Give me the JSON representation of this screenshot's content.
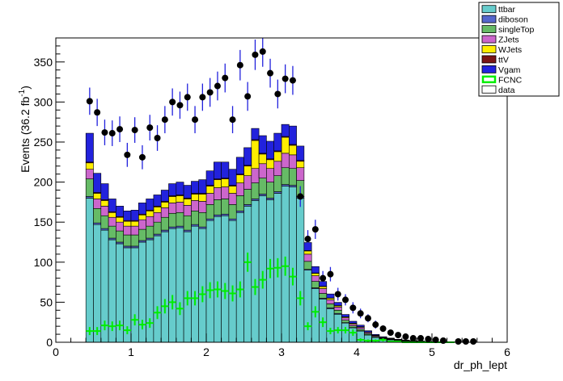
{
  "chart_data": {
    "type": "bar",
    "subtype": "stacked-histogram-with-data-points",
    "xlabel": "dr_ph_lept",
    "ylabel_prefix": "Events (36.2 fb",
    "ylabel_exp": "-1",
    "ylabel_suffix": ")",
    "xlim": [
      0,
      6
    ],
    "ylim": [
      0,
      380
    ],
    "x_ticks": [
      0,
      1,
      2,
      3,
      4,
      5,
      6
    ],
    "y_ticks": [
      0,
      50,
      100,
      150,
      200,
      250,
      300,
      350
    ],
    "grid": false,
    "legend_position": "top-right",
    "bin_width": 0.1,
    "bin_edges_start": 0.4,
    "x": [
      0.45,
      0.55,
      0.65,
      0.75,
      0.85,
      0.95,
      1.05,
      1.15,
      1.25,
      1.35,
      1.45,
      1.55,
      1.65,
      1.75,
      1.85,
      1.95,
      2.05,
      2.15,
      2.25,
      2.35,
      2.45,
      2.55,
      2.65,
      2.75,
      2.85,
      2.95,
      3.05,
      3.15,
      3.25,
      3.35,
      3.45,
      3.55,
      3.65,
      3.75,
      3.85,
      3.95,
      4.05,
      4.15,
      4.25,
      4.35,
      4.45,
      4.55,
      4.65,
      4.75,
      4.85,
      4.95,
      5.05,
      5.15,
      5.25,
      5.35,
      5.45,
      5.55,
      5.65,
      5.75
    ],
    "stack_order": [
      "ttbar",
      "diboson",
      "singleTop",
      "ZJets",
      "WJets",
      "ttV",
      "Vgam"
    ],
    "series": [
      {
        "name": "ttbar",
        "color": "#66cccc",
        "values": [
          180,
          147,
          140,
          128,
          123,
          118,
          118,
          125,
          128,
          133,
          138,
          142,
          143,
          138,
          145,
          142,
          152,
          157,
          158,
          152,
          162,
          170,
          177,
          183,
          178,
          186,
          195,
          194,
          180,
          90,
          67,
          54,
          42,
          35,
          24,
          18,
          14,
          9,
          6,
          4,
          3,
          2,
          1.5,
          1,
          0.8,
          0.6,
          0.4,
          0.3,
          0.2,
          0.2,
          0.1,
          0.1,
          0.1,
          0.1
        ]
      },
      {
        "name": "diboson",
        "color": "#5566cc",
        "values": [
          2,
          2,
          2,
          2,
          2,
          2,
          2,
          2,
          2,
          2,
          2,
          2,
          2,
          2,
          2,
          2,
          2,
          2,
          2,
          2,
          2,
          2,
          2,
          2,
          2,
          2,
          2,
          2,
          2,
          1,
          1,
          1,
          1,
          1,
          0.5,
          0.5,
          0.5,
          0.3,
          0.3,
          0.2,
          0.2,
          0.1,
          0.1,
          0.1,
          0.1,
          0,
          0,
          0,
          0,
          0,
          0,
          0,
          0,
          0
        ]
      },
      {
        "name": "singleTop",
        "color": "#66bb66",
        "values": [
          22,
          18,
          16,
          15,
          14,
          14,
          14,
          14,
          15,
          15,
          16,
          17,
          17,
          18,
          17,
          18,
          18,
          19,
          19,
          18,
          19,
          19,
          20,
          20,
          20,
          20,
          21,
          21,
          20,
          10,
          8,
          6,
          5,
          4,
          3,
          2,
          2,
          1.5,
          1,
          0.8,
          0.6,
          0.5,
          0.4,
          0.3,
          0.2,
          0.2,
          0.1,
          0.1,
          0.1,
          0,
          0,
          0,
          0,
          0
        ]
      },
      {
        "name": "ZJets",
        "color": "#cc66cc",
        "values": [
          12,
          12,
          12,
          11,
          11,
          11,
          11,
          12,
          12,
          12,
          12,
          13,
          13,
          13,
          13,
          14,
          14,
          15,
          15,
          14,
          16,
          17,
          18,
          18,
          17,
          18,
          18,
          17,
          16,
          9,
          7,
          6,
          5,
          4,
          3,
          2,
          2,
          1.5,
          1,
          0.8,
          0.6,
          0.4,
          0.3,
          0.2,
          0.2,
          0.1,
          0.1,
          0.1,
          0,
          0,
          0,
          0,
          0,
          0
        ]
      },
      {
        "name": "WJets",
        "color": "#ffee00",
        "values": [
          8,
          7,
          7,
          6,
          6,
          6,
          6,
          6,
          7,
          7,
          7,
          8,
          8,
          8,
          8,
          9,
          9,
          10,
          10,
          9,
          10,
          12,
          35,
          12,
          11,
          12,
          20,
          12,
          8,
          4,
          3,
          2.5,
          2,
          1.5,
          1,
          1,
          0.8,
          0.5,
          0.4,
          0.3,
          0.2,
          0.2,
          0.1,
          0.1,
          0.1,
          0,
          0,
          0,
          0,
          0,
          0,
          0,
          0,
          0
        ]
      },
      {
        "name": "ttV",
        "color": "#7a1515",
        "values": [
          1,
          1,
          1,
          1,
          1,
          1,
          1,
          1,
          1,
          1,
          1,
          1,
          1,
          1,
          1,
          1,
          1,
          1,
          1,
          1,
          1,
          1,
          1,
          1,
          1,
          1,
          1,
          1,
          1,
          0.5,
          0.5,
          0.4,
          0.3,
          0.3,
          0.2,
          0.2,
          0.1,
          0.1,
          0.1,
          0,
          0,
          0,
          0,
          0,
          0,
          0,
          0,
          0,
          0,
          0,
          0,
          0,
          0,
          0
        ]
      },
      {
        "name": "Vgam",
        "color": "#2222dd",
        "values": [
          36,
          24,
          20,
          16,
          13,
          12,
          13,
          14,
          14,
          14,
          14,
          15,
          16,
          16,
          15,
          17,
          18,
          21,
          20,
          20,
          21,
          22,
          14,
          22,
          22,
          22,
          15,
          23,
          18,
          10,
          8,
          6,
          5,
          4,
          3,
          2.5,
          2,
          1.5,
          1,
          0.8,
          0.6,
          0.5,
          0.4,
          0.3,
          0.2,
          0.2,
          0.1,
          0.1,
          0.1,
          0,
          0,
          0,
          0,
          0
        ]
      }
    ],
    "fcnc": {
      "name": "FCNC",
      "color": "#00ee00",
      "x": [
        0.45,
        0.55,
        0.65,
        0.75,
        0.85,
        0.95,
        1.05,
        1.15,
        1.25,
        1.35,
        1.45,
        1.55,
        1.65,
        1.75,
        1.85,
        1.95,
        2.05,
        2.15,
        2.25,
        2.35,
        2.45,
        2.55,
        2.65,
        2.75,
        2.85,
        2.95,
        3.05,
        3.15,
        3.25,
        3.35,
        3.45,
        3.55,
        3.65,
        3.75,
        3.85,
        3.95,
        4.05,
        4.15,
        4.25,
        4.35,
        4.45,
        4.55,
        4.65,
        4.75,
        4.85,
        4.95,
        5.05,
        5.15,
        5.25
      ],
      "values": [
        14,
        14,
        21,
        20,
        21,
        15,
        28,
        22,
        24,
        37,
        45,
        50,
        42,
        55,
        55,
        60,
        65,
        66,
        64,
        61,
        66,
        100,
        69,
        78,
        92,
        93,
        95,
        82,
        55,
        20,
        38,
        25,
        14,
        15,
        15,
        12,
        3,
        2,
        2,
        3,
        1,
        1,
        0,
        0,
        0,
        0,
        0,
        0,
        0
      ],
      "errors": [
        5,
        5,
        6,
        6,
        6,
        5,
        7,
        6,
        6,
        8,
        9,
        9,
        8,
        9,
        9,
        10,
        10,
        10,
        10,
        10,
        10,
        12,
        10,
        11,
        12,
        12,
        12,
        11,
        9,
        5,
        7,
        6,
        4,
        4,
        4,
        4,
        2,
        1.5,
        1.5,
        2,
        1,
        1,
        0,
        0,
        0,
        0,
        0,
        0,
        0
      ]
    },
    "data_points": {
      "name": "data",
      "color": "#000000",
      "x": [
        0.45,
        0.55,
        0.65,
        0.75,
        0.85,
        0.95,
        1.05,
        1.15,
        1.25,
        1.35,
        1.45,
        1.55,
        1.65,
        1.75,
        1.85,
        1.95,
        2.05,
        2.15,
        2.25,
        2.35,
        2.45,
        2.55,
        2.65,
        2.75,
        2.85,
        2.95,
        3.05,
        3.15,
        3.25,
        3.35,
        3.45,
        3.55,
        3.65,
        3.75,
        3.85,
        3.95,
        4.05,
        4.15,
        4.25,
        4.35,
        4.45,
        4.55,
        4.65,
        4.75,
        4.85,
        4.95,
        5.05,
        5.15,
        5.35,
        5.45,
        5.55
      ],
      "values": [
        301,
        287,
        262,
        261,
        266,
        234,
        265,
        231,
        268,
        255,
        278,
        300,
        296,
        306,
        278,
        306,
        312,
        320,
        330,
        278,
        346,
        307,
        359,
        363,
        336,
        310,
        329,
        327,
        182,
        129,
        141,
        80,
        85,
        60,
        53,
        43,
        36,
        30,
        22,
        17,
        12,
        9,
        7,
        5,
        5,
        4,
        3,
        2,
        1,
        1,
        1
      ],
      "errors": [
        17,
        17,
        16,
        16,
        16,
        15,
        16,
        15,
        16,
        16,
        17,
        17,
        17,
        17,
        17,
        17,
        18,
        18,
        18,
        17,
        19,
        18,
        19,
        19,
        18,
        18,
        18,
        18,
        13,
        11,
        12,
        9,
        9,
        8,
        7,
        7,
        6,
        5,
        5,
        4,
        3.5,
        3,
        2.6,
        2.2,
        2.2,
        2,
        1.7,
        1.4,
        1,
        1,
        1
      ]
    },
    "legend": [
      {
        "label": "ttbar",
        "color": "#66cccc",
        "style": "fill"
      },
      {
        "label": "diboson",
        "color": "#5566cc",
        "style": "fill"
      },
      {
        "label": "singleTop",
        "color": "#66bb66",
        "style": "fill"
      },
      {
        "label": "ZJets",
        "color": "#cc66cc",
        "style": "fill"
      },
      {
        "label": "WJets",
        "color": "#ffee00",
        "style": "fill"
      },
      {
        "label": "ttV",
        "color": "#7a1515",
        "style": "fill"
      },
      {
        "label": "Vgam",
        "color": "#2222dd",
        "style": "fill"
      },
      {
        "label": "FCNC",
        "color": "#00ee00",
        "style": "outline"
      },
      {
        "label": "data",
        "color": "#ffffff",
        "style": "fill"
      }
    ]
  }
}
